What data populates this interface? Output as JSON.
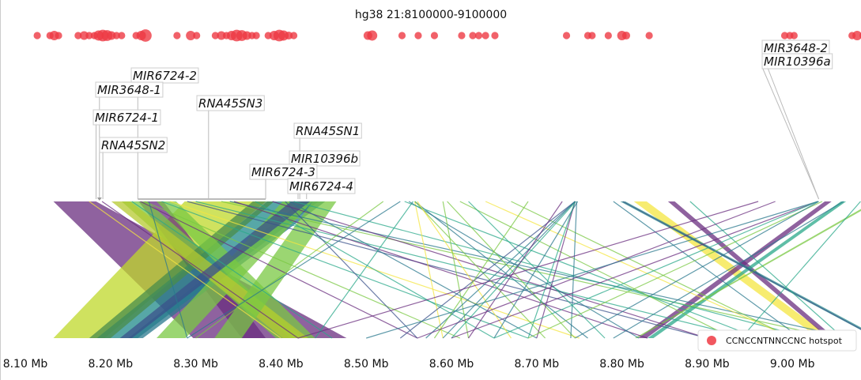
{
  "chart_data": {
    "type": "scatter",
    "title": "hg38 21:8100000-9100000",
    "xlim": [
      8100000,
      9100000
    ],
    "x_ticks": [
      {
        "value": 8100000,
        "label": "8.10 Mb"
      },
      {
        "value": 8200000,
        "label": "8.20 Mb"
      },
      {
        "value": 8300000,
        "label": "8.30 Mb"
      },
      {
        "value": 8400000,
        "label": "8.40 Mb"
      },
      {
        "value": 8500000,
        "label": "8.50 Mb"
      },
      {
        "value": 8600000,
        "label": "8.60 Mb"
      },
      {
        "value": 8700000,
        "label": "8.70 Mb"
      },
      {
        "value": 8800000,
        "label": "8.80 Mb"
      },
      {
        "value": 8900000,
        "label": "8.90 Mb"
      },
      {
        "value": 9000000,
        "label": "9.00 Mb"
      }
    ],
    "legend": {
      "label": "CCNCCNTNNCCNC hotspot",
      "color": "#ee3a43",
      "position": "bottom-right"
    },
    "hotspots": [
      {
        "x": 8114000,
        "size": 1
      },
      {
        "x": 8129000,
        "size": 1
      },
      {
        "x": 8134000,
        "size": 1.3
      },
      {
        "x": 8139000,
        "size": 1
      },
      {
        "x": 8162000,
        "size": 1
      },
      {
        "x": 8169000,
        "size": 1.2
      },
      {
        "x": 8175000,
        "size": 1
      },
      {
        "x": 8181000,
        "size": 1
      },
      {
        "x": 8186000,
        "size": 1.4
      },
      {
        "x": 8191000,
        "size": 1.6
      },
      {
        "x": 8196000,
        "size": 1.5
      },
      {
        "x": 8201000,
        "size": 1.2
      },
      {
        "x": 8207000,
        "size": 1
      },
      {
        "x": 8213000,
        "size": 1
      },
      {
        "x": 8230000,
        "size": 1
      },
      {
        "x": 8236000,
        "size": 1.3
      },
      {
        "x": 8241000,
        "size": 1.7
      },
      {
        "x": 8278000,
        "size": 1
      },
      {
        "x": 8294000,
        "size": 1.3
      },
      {
        "x": 8301000,
        "size": 1
      },
      {
        "x": 8323000,
        "size": 1
      },
      {
        "x": 8330000,
        "size": 1.2
      },
      {
        "x": 8336000,
        "size": 1
      },
      {
        "x": 8342000,
        "size": 1.3
      },
      {
        "x": 8348000,
        "size": 1.6
      },
      {
        "x": 8354000,
        "size": 1.5
      },
      {
        "x": 8360000,
        "size": 1.2
      },
      {
        "x": 8366000,
        "size": 1
      },
      {
        "x": 8371000,
        "size": 1
      },
      {
        "x": 8385000,
        "size": 1
      },
      {
        "x": 8392000,
        "size": 1.3
      },
      {
        "x": 8398000,
        "size": 1.6
      },
      {
        "x": 8403000,
        "size": 1.4
      },
      {
        "x": 8409000,
        "size": 1.1
      },
      {
        "x": 8415000,
        "size": 1
      },
      {
        "x": 8502000,
        "size": 1.2
      },
      {
        "x": 8507000,
        "size": 1.4
      },
      {
        "x": 8542000,
        "size": 1
      },
      {
        "x": 8561000,
        "size": 1
      },
      {
        "x": 8580000,
        "size": 1
      },
      {
        "x": 8612000,
        "size": 1
      },
      {
        "x": 8625000,
        "size": 1
      },
      {
        "x": 8632000,
        "size": 1
      },
      {
        "x": 8640000,
        "size": 1
      },
      {
        "x": 8651000,
        "size": 1
      },
      {
        "x": 8735000,
        "size": 1
      },
      {
        "x": 8760000,
        "size": 1
      },
      {
        "x": 8765000,
        "size": 1
      },
      {
        "x": 8784000,
        "size": 1
      },
      {
        "x": 8800000,
        "size": 1.3
      },
      {
        "x": 8805000,
        "size": 1.1
      },
      {
        "x": 8832000,
        "size": 1
      },
      {
        "x": 8991000,
        "size": 1
      },
      {
        "x": 8997000,
        "size": 1
      },
      {
        "x": 9002000,
        "size": 1
      },
      {
        "x": 9070000,
        "size": 1
      },
      {
        "x": 9076000,
        "size": 1.3
      },
      {
        "x": 9083000,
        "size": 1
      }
    ],
    "gene_annotations": [
      {
        "name": "MIR6724-2",
        "x": 8232000,
        "label_row": 1
      },
      {
        "name": "MIR3648-1",
        "x": 8187000,
        "label_row": 2
      },
      {
        "name": "RNA45SN3",
        "x": 8315000,
        "label_row": 3
      },
      {
        "name": "MIR6724-1",
        "x": 8183000,
        "label_row": 4
      },
      {
        "name": "RNA45SN1",
        "x": 8422000,
        "label_row": 5
      },
      {
        "name": "RNA45SN2",
        "x": 8191000,
        "label_row": 6
      },
      {
        "name": "MIR10396b",
        "x": 8420000,
        "label_row": 7
      },
      {
        "name": "MIR6724-3",
        "x": 8382000,
        "label_row": 8
      },
      {
        "name": "MIR6724-4",
        "x": 8430000,
        "label_row": 9
      },
      {
        "name": "MIR3648-2",
        "x": 9031000,
        "label_row": 0
      },
      {
        "name": "MIR10396a",
        "x": 9031000,
        "label_row": 1
      }
    ],
    "alignment_bands": [
      {
        "top": [
          8133000,
          8183000
        ],
        "bottom": [
          8297000,
          8477000
        ],
        "color": "#6a2e7f"
      },
      {
        "top": [
          8287000,
          8382000
        ],
        "bottom": [
          8133000,
          8193000
        ],
        "color": "#bfd82a"
      },
      {
        "top": [
          8233000,
          8262000
        ],
        "bottom": [
          8354000,
          8382000
        ],
        "color": "#6a2e7f"
      },
      {
        "top": [
          8213000,
          8243000
        ],
        "bottom": [
          8394000,
          8427000
        ],
        "color": "#7ac843"
      },
      {
        "top": [
          8384000,
          8444000
        ],
        "bottom": [
          8184000,
          8232000
        ],
        "color": "#1f8a8a"
      },
      {
        "top": [
          8424000,
          8452000
        ],
        "bottom": [
          8221000,
          8238000
        ],
        "color": "#2a788e"
      },
      {
        "top": [
          8402000,
          8437000
        ],
        "bottom": [
          8254000,
          8288000
        ],
        "color": "#7ac843"
      },
      {
        "top": [
          8367000,
          8392000
        ],
        "bottom": [
          8175000,
          8200000
        ],
        "color": "#4a8c4a"
      },
      {
        "top": [
          8254000,
          8277000
        ],
        "bottom": [
          8410000,
          8440000
        ],
        "color": "#7ac843"
      },
      {
        "top": [
          8201000,
          8223000
        ],
        "bottom": [
          8402000,
          8432000
        ],
        "color": "#b5c930"
      },
      {
        "top": [
          8437000,
          8465000
        ],
        "bottom": [
          8322000,
          8354000
        ],
        "color": "#7ac843"
      },
      {
        "top": [
          8412000,
          8434000
        ],
        "bottom": [
          8211000,
          8225000
        ],
        "color": "#3b528b"
      },
      {
        "top": [
          8814000,
          8829000
        ],
        "bottom": [
          9031000,
          9046000
        ],
        "color": "#f4e540"
      },
      {
        "top": [
          8854000,
          8862000
        ],
        "bottom": [
          9042000,
          9050000
        ],
        "color": "#6a2e7f"
      },
      {
        "top": [
          9038000,
          9046000
        ],
        "bottom": [
          8819000,
          8829000
        ],
        "color": "#6a2e7f"
      },
      {
        "top": [
          9057000,
          9063000
        ],
        "bottom": [
          8830000,
          8837000
        ],
        "color": "#2aa889"
      },
      {
        "top": [
          8798000,
          8804000
        ],
        "bottom": [
          9098000,
          9104000
        ],
        "color": "#2a8c8c"
      },
      {
        "top": [
          9096000,
          9100000
        ],
        "bottom": [
          8815000,
          8818000
        ],
        "color": "#7ac843"
      }
    ],
    "alignment_lines": [
      {
        "x1": 8175000,
        "x2": 8400000,
        "color": "#f4e540"
      },
      {
        "x1": 8190000,
        "x2": 8420000,
        "color": "#6a2e7f"
      },
      {
        "x1": 8225000,
        "x2": 8460000,
        "color": "#2aa889"
      },
      {
        "x1": 8235000,
        "x2": 8560000,
        "color": "#6a2e7f"
      },
      {
        "x1": 8240000,
        "x2": 8610000,
        "color": "#7ac843"
      },
      {
        "x1": 8245000,
        "x2": 8290000,
        "color": "#2a788e"
      },
      {
        "x1": 8260000,
        "x2": 8690000,
        "color": "#2aa889"
      },
      {
        "x1": 8270000,
        "x2": 8750000,
        "color": "#f4e540"
      },
      {
        "x1": 8290000,
        "x2": 8900000,
        "color": "#3b528b"
      },
      {
        "x1": 8300000,
        "x2": 8950000,
        "color": "#2aa889"
      },
      {
        "x1": 8330000,
        "x2": 9050000,
        "color": "#7ac843"
      },
      {
        "x1": 8340000,
        "x2": 9070000,
        "color": "#2a788e"
      },
      {
        "x1": 8345000,
        "x2": 8830000,
        "color": "#6a2e7f"
      },
      {
        "x1": 8370000,
        "x2": 8650000,
        "color": "#2aa889"
      },
      {
        "x1": 8390000,
        "x2": 8900000,
        "color": "#6a2e7f"
      },
      {
        "x1": 8405000,
        "x2": 8560000,
        "color": "#3b528b"
      },
      {
        "x1": 8410000,
        "x2": 8700000,
        "color": "#2a788e"
      },
      {
        "x1": 8415000,
        "x2": 9020000,
        "color": "#2aa889"
      },
      {
        "x1": 8520000,
        "x2": 8300000,
        "color": "#7ac843"
      },
      {
        "x1": 8540000,
        "x2": 8290000,
        "color": "#2a788e"
      },
      {
        "x1": 8555000,
        "x2": 8440000,
        "color": "#2aa889"
      },
      {
        "x1": 8557000,
        "x2": 8590000,
        "color": "#f4e540"
      },
      {
        "x1": 8557000,
        "x2": 8760000,
        "color": "#2a788e"
      },
      {
        "x1": 8550000,
        "x2": 8820000,
        "color": "#2a788e"
      },
      {
        "x1": 8557000,
        "x2": 8710000,
        "color": "#7ac843"
      },
      {
        "x1": 8545000,
        "x2": 8960000,
        "color": "#2aa889"
      },
      {
        "x1": 8560000,
        "x2": 8670000,
        "color": "#f4e540"
      },
      {
        "x1": 8590000,
        "x2": 8620000,
        "color": "#7ac843"
      },
      {
        "x1": 8595000,
        "x2": 8745000,
        "color": "#7ac843"
      },
      {
        "x1": 8610000,
        "x2": 8930000,
        "color": "#7ac843"
      },
      {
        "x1": 8620000,
        "x2": 8780000,
        "color": "#2aa889"
      },
      {
        "x1": 8640000,
        "x2": 9000000,
        "color": "#f4e540"
      },
      {
        "x1": 8670000,
        "x2": 9000000,
        "color": "#7ac843"
      },
      {
        "x1": 8745000,
        "x2": 8540000,
        "color": "#3b528b"
      },
      {
        "x1": 8745000,
        "x2": 8570000,
        "color": "#2a788e"
      },
      {
        "x1": 8746000,
        "x2": 8600000,
        "color": "#2aa889"
      },
      {
        "x1": 8748000,
        "x2": 8650000,
        "color": "#2a788e"
      },
      {
        "x1": 8745000,
        "x2": 8700000,
        "color": "#6a2e7f"
      },
      {
        "x1": 8745000,
        "x2": 8690000,
        "color": "#2aa889"
      },
      {
        "x1": 8745000,
        "x2": 8590000,
        "color": "#2a788e"
      },
      {
        "x1": 8747000,
        "x2": 8740000,
        "color": "#2a788e"
      },
      {
        "x1": 8690000,
        "x2": 8580000,
        "color": "#7ac843"
      },
      {
        "x1": 8730000,
        "x2": 8620000,
        "color": "#6a2e7f"
      },
      {
        "x1": 8790000,
        "x2": 9010000,
        "color": "#2a788e"
      },
      {
        "x1": 8801000,
        "x2": 9100000,
        "color": "#3b528b"
      },
      {
        "x1": 8880000,
        "x2": 9060000,
        "color": "#2aa889"
      },
      {
        "x1": 8960000,
        "x2": 8420000,
        "color": "#6a2e7f"
      },
      {
        "x1": 8980000,
        "x2": 8560000,
        "color": "#6a2e7f"
      },
      {
        "x1": 9030000,
        "x2": 8600000,
        "color": "#6a2e7f"
      },
      {
        "x1": 9035000,
        "x2": 8690000,
        "color": "#7ac843"
      },
      {
        "x1": 9030000,
        "x2": 8500000,
        "color": "#2a788e"
      },
      {
        "x1": 9030000,
        "x2": 8650000,
        "color": "#2aa889"
      },
      {
        "x1": 9031000,
        "x2": 8745000,
        "color": "#2a788e"
      },
      {
        "x1": 9060000,
        "x2": 8790000,
        "color": "#2a788e"
      },
      {
        "x1": 9080000,
        "x2": 8940000,
        "color": "#2aa889"
      }
    ]
  }
}
